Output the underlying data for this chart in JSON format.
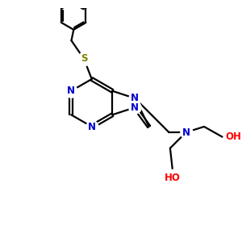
{
  "background_color": "#ffffff",
  "bond_color": "#000000",
  "N_color": "#0000cc",
  "S_color": "#808000",
  "O_color": "#ff0000",
  "line_width": 1.6,
  "figsize": [
    3.0,
    3.0
  ],
  "dpi": 100,
  "xlim": [
    0,
    10
  ],
  "ylim": [
    0,
    10
  ]
}
